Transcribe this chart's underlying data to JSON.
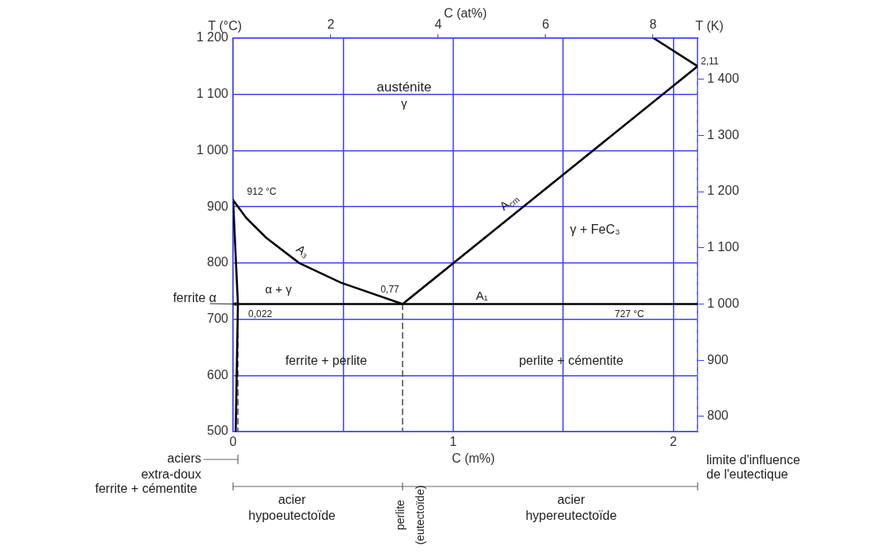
{
  "chart_data": {
    "type": "line",
    "xlabel": "C (m%)",
    "ylabel": "T (°C)",
    "y2label": "T (K)",
    "x2label": "C (at%)",
    "xlim": [
      0,
      2.11
    ],
    "xticks": [
      0,
      {
        "value": 0.5,
        "label": null
      },
      1,
      {
        "value": 1.5,
        "label": null
      },
      2
    ],
    "ylim": [
      500,
      1200
    ],
    "yticks": [
      500,
      600,
      700,
      800,
      900,
      {
        "value": 1000,
        "label": "1 000"
      },
      {
        "value": 1100,
        "label": "1 100"
      },
      {
        "value": 1200,
        "label": "1 200"
      }
    ],
    "y2lim": [
      773,
      1473
    ],
    "y2ticks": [
      800,
      900,
      {
        "value": 1000,
        "label": "1 000"
      },
      {
        "value": 1100,
        "label": "1 100"
      },
      {
        "value": 1200,
        "label": "1 200"
      },
      {
        "value": 1300,
        "label": "1 300"
      },
      {
        "value": 1400,
        "label": "1 400"
      }
    ],
    "x2lim": [
      0.18,
      8.83
    ],
    "x2ticks": [
      2,
      4,
      6,
      8
    ],
    "grid": true,
    "marker": "none",
    "line_style": "solid",
    "series": [
      {
        "color": "#000000",
        "x": [
          0,
          0.022,
          0.012
        ],
        "values": [
          912,
          727,
          500
        ]
      },
      {
        "color": "#000000",
        "x": [
          0,
          0.06,
          0.15,
          0.3,
          0.49,
          0.77
        ],
        "values": [
          912,
          880,
          845,
          800,
          765,
          727
        ]
      },
      {
        "color": "#000000",
        "x": [
          0.77,
          2.11
        ],
        "values": [
          727,
          1150
        ]
      },
      {
        "color": "#000000",
        "x": [
          1.91,
          2.11
        ],
        "values": [
          1200,
          1150
        ]
      },
      {
        "color": "#000000",
        "x": [
          0,
          2.11
        ],
        "values": [
          727,
          727
        ]
      },
      {
        "color": "#555555",
        "line_style": "dashed",
        "x": [
          0.022,
          0.022
        ],
        "values": [
          727,
          500
        ]
      },
      {
        "color": "#555555",
        "line_style": "dashed",
        "x": [
          0.77,
          0.77
        ],
        "values": [
          727,
          500
        ]
      },
      {
        "color": "#888888",
        "line_style": "dashed",
        "x": [
          2.11,
          2.11
        ],
        "values": [
          1150,
          500
        ]
      }
    ],
    "annotations": [
      {
        "text": "A₁",
        "x": 1.13,
        "y": 727
      },
      {
        "text": "727 °C",
        "x": 1.8,
        "y": 727
      },
      {
        "text": "0,022",
        "x": 0.022,
        "y": 727
      },
      {
        "text": "0,77",
        "x": 0.77,
        "y": 727
      },
      {
        "text": "912 °C",
        "x": 0,
        "y": 912
      },
      {
        "text": "2,11",
        "x": 2.11,
        "y": 1150
      },
      {
        "text": "A₃",
        "x": 0.3,
        "y": 800
      },
      {
        "text": "A$_{cm}$",
        "x": 1.29,
        "y": 891
      },
      {
        "text": "ferrite α",
        "x": 0.022,
        "y": 727
      },
      "austénite",
      "γ",
      "γ + FeC₃",
      "α + γ",
      "ferrite + perlite",
      "perlite + cémentite",
      "aciers",
      "extra-doux",
      "ferrite + cémentite",
      "acier",
      "hypoeutectoïde",
      "perlite",
      "(eutectoïde)",
      "acier",
      "hypereutectoïde",
      "limite d'influence",
      "de l'eutectique"
    ]
  }
}
